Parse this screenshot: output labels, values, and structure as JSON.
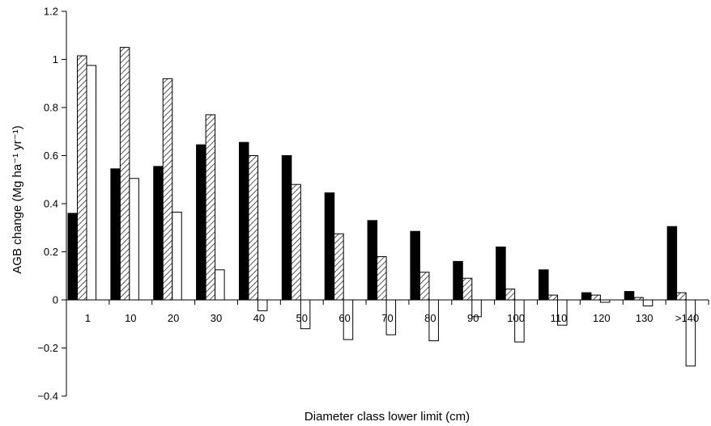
{
  "chart_data": {
    "type": "bar",
    "title": "",
    "xlabel": "Diameter class lower limit (cm)",
    "ylabel": "AGB change (Mg ha⁻¹ yr⁻¹)",
    "ylim": [
      -0.4,
      1.2
    ],
    "yticks": [
      -0.4,
      -0.2,
      0,
      0.2,
      0.4,
      0.6,
      0.8,
      1,
      1.2
    ],
    "ytick_labels": [
      "−0.4",
      "−0.2",
      "0",
      "0.2",
      "0.4",
      "0.6",
      "0.8",
      "1",
      "1.2"
    ],
    "categories": [
      "1",
      "10",
      "20",
      "30",
      "40",
      "50",
      "60",
      "70",
      "80",
      "90",
      "100",
      "110",
      "120",
      "130",
      ">140"
    ],
    "series": [
      {
        "fill": "solid",
        "color": "#000000",
        "values": [
          0.36,
          0.545,
          0.555,
          0.645,
          0.655,
          0.6,
          0.445,
          0.33,
          0.285,
          0.16,
          0.22,
          0.125,
          0.03,
          0.035,
          0.305
        ]
      },
      {
        "fill": "hatched",
        "color": "#000000",
        "values": [
          1.015,
          1.05,
          0.92,
          0.77,
          0.6,
          0.48,
          0.275,
          0.18,
          0.115,
          0.09,
          0.045,
          0.02,
          0.02,
          0.01,
          0.03
        ]
      },
      {
        "fill": "open",
        "color": "#ffffff",
        "values": [
          0.975,
          0.505,
          0.365,
          0.125,
          -0.045,
          -0.12,
          -0.165,
          -0.145,
          -0.17,
          -0.07,
          -0.175,
          -0.105,
          -0.01,
          -0.025,
          -0.275
        ]
      }
    ],
    "grid": false,
    "legend": "none"
  }
}
